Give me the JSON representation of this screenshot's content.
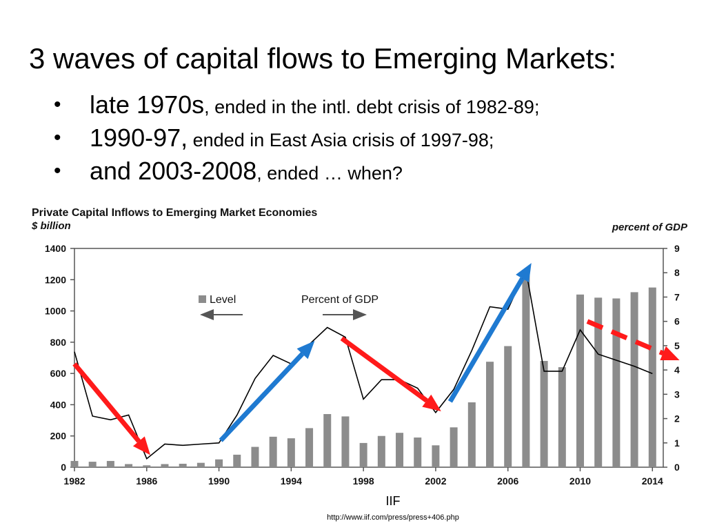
{
  "slide": {
    "title": "3 waves of capital flows to Emerging Markets:",
    "bullets": [
      {
        "symbol": "•",
        "main": "late 1970s",
        "rest": ", ended in the intl. debt crisis of 1982-89;"
      },
      {
        "symbol": "•",
        "main": "1990-97,",
        "rest": " ended in East Asia crisis of 1997-98;"
      },
      {
        "symbol": "•",
        "main": "and 2003-2008",
        "rest": ", ended … when?"
      }
    ],
    "source": "IIF",
    "source_url": "http://www.iif.com/press/press+406.php"
  },
  "chart_data": {
    "type": "bar",
    "title": "Private Capital Inflows to Emerging Market Economies",
    "ylabel_left": "$ billion",
    "ylabel_right": "percent of GDP",
    "x": [
      1982,
      1983,
      1984,
      1985,
      1986,
      1987,
      1988,
      1989,
      1990,
      1991,
      1992,
      1993,
      1994,
      1995,
      1996,
      1997,
      1998,
      1999,
      2000,
      2001,
      2002,
      2003,
      2004,
      2005,
      2006,
      2007,
      2008,
      2009,
      2010,
      2011,
      2012,
      2013,
      2014
    ],
    "x_tick_labels": [
      "1982",
      "1986",
      "1990",
      "1994",
      "1998",
      "2002",
      "2006",
      "2010",
      "2014"
    ],
    "ylim_left": [
      0,
      1400
    ],
    "y_ticks_left": [
      "0",
      "200",
      "400",
      "600",
      "800",
      "1000",
      "1200",
      "1400"
    ],
    "ylim_right": [
      0,
      9
    ],
    "y_ticks_right": [
      "0",
      "1",
      "2",
      "3",
      "4",
      "5",
      "6",
      "7",
      "8",
      "9"
    ],
    "legend": {
      "level": "Level",
      "percent": "Percent of GDP"
    },
    "series": [
      {
        "name": "Level",
        "axis": "left",
        "color": "#8c8c8c",
        "values": [
          40,
          35,
          40,
          20,
          12,
          20,
          22,
          28,
          50,
          80,
          130,
          195,
          185,
          250,
          340,
          325,
          155,
          200,
          220,
          190,
          140,
          255,
          415,
          675,
          775,
          1260,
          680,
          640,
          1105,
          1085,
          1080,
          1120,
          1150
        ]
      },
      {
        "name": "Percent of GDP",
        "axis": "right",
        "color": "#000000",
        "values": [
          4.75,
          2.1,
          1.95,
          2.15,
          0.35,
          0.95,
          0.9,
          0.95,
          1.0,
          2.15,
          3.65,
          4.6,
          4.25,
          5.05,
          5.75,
          5.35,
          2.8,
          3.6,
          3.6,
          3.25,
          2.25,
          3.2,
          4.8,
          6.6,
          6.5,
          8.1,
          3.95,
          3.95,
          5.65,
          4.65,
          4.4,
          4.15,
          3.85
        ]
      }
    ],
    "annotations": [
      {
        "type": "arrow",
        "color": "#ff1a1a",
        "style": "solid",
        "from": [
          1982,
          4.25
        ],
        "to": [
          1986.2,
          0.5
        ]
      },
      {
        "type": "arrow",
        "color": "#1f7ad1",
        "style": "solid",
        "from": [
          1990.1,
          1.1
        ],
        "to": [
          1995.3,
          5.2
        ]
      },
      {
        "type": "arrow",
        "color": "#ff1a1a",
        "style": "solid",
        "from": [
          1996.8,
          5.3
        ],
        "to": [
          2002.3,
          2.3
        ]
      },
      {
        "type": "arrow",
        "color": "#1f7ad1",
        "style": "solid",
        "from": [
          2002.8,
          2.7
        ],
        "to": [
          2007.3,
          8.4
        ]
      },
      {
        "type": "arrow",
        "color": "#ff1a1a",
        "style": "dashed",
        "from": [
          2010.4,
          6.0
        ],
        "to": [
          2015.5,
          4.4
        ]
      }
    ]
  }
}
